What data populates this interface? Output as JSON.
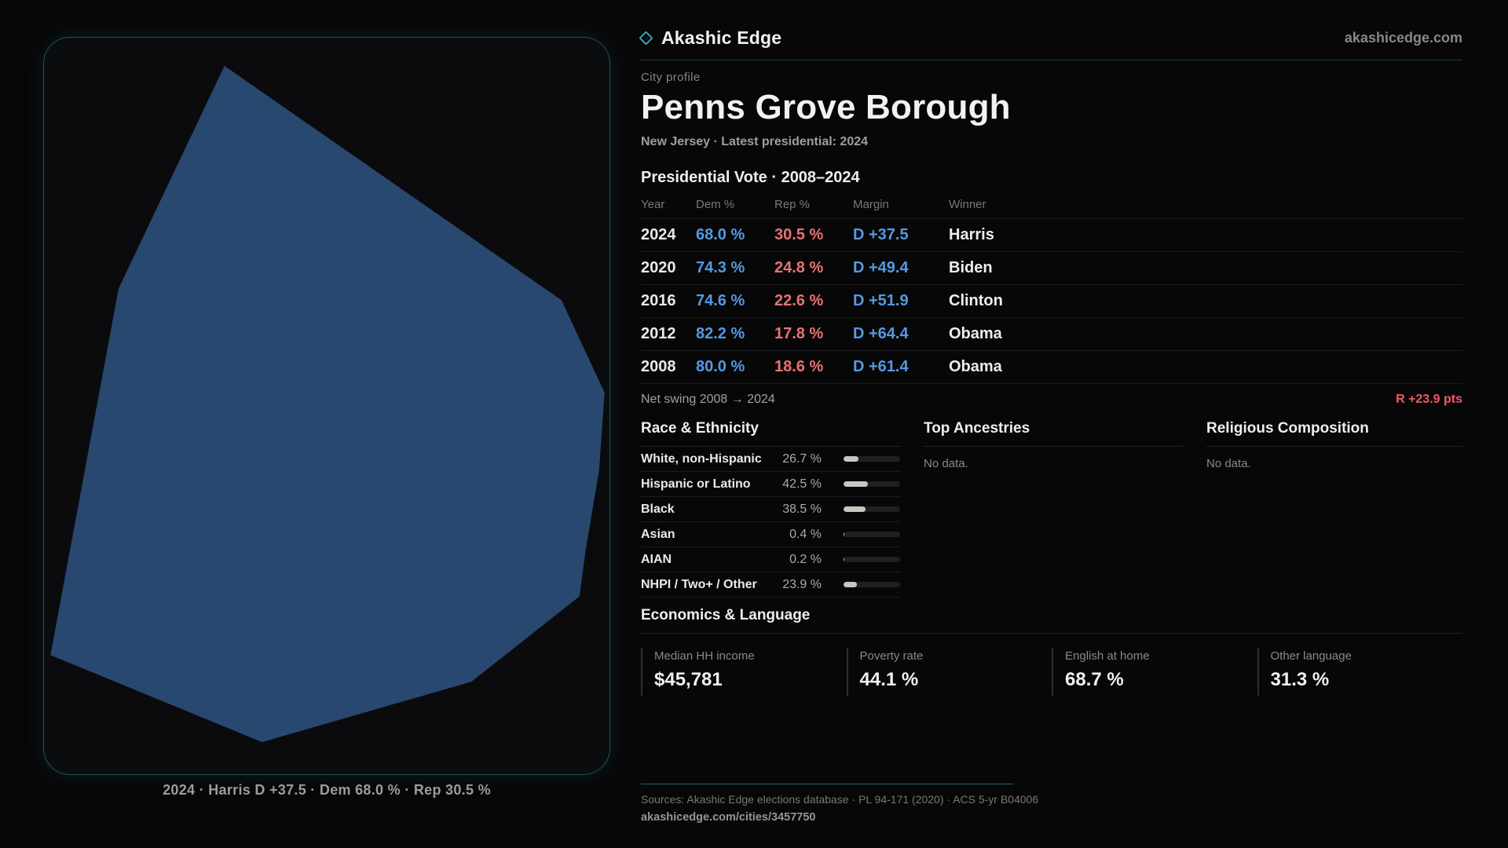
{
  "brand": {
    "name": "Akashic Edge",
    "site": "akashicedge.com"
  },
  "map": {
    "caption": "2024 · Harris D +37.5 · Dem 68.0 % · Rep 30.5 %",
    "shape_fill": "#284870",
    "panel_border": "#17565c"
  },
  "profile": {
    "kicker": "City profile",
    "title": "Penns Grove Borough",
    "subtitle": "New Jersey · Latest presidential: 2024"
  },
  "vote_table": {
    "title": "Presidential Vote · 2008–2024",
    "columns": {
      "year": "Year",
      "dem": "Dem %",
      "rep": "Rep %",
      "margin": "Margin",
      "winner": "Winner"
    },
    "rows": [
      {
        "year": "2024",
        "dem": "68.0 %",
        "rep": "30.5 %",
        "margin": "D +37.5",
        "winner": "Harris"
      },
      {
        "year": "2020",
        "dem": "74.3 %",
        "rep": "24.8 %",
        "margin": "D +49.4",
        "winner": "Biden"
      },
      {
        "year": "2016",
        "dem": "74.6 %",
        "rep": "22.6 %",
        "margin": "D +51.9",
        "winner": "Clinton"
      },
      {
        "year": "2012",
        "dem": "82.2 %",
        "rep": "17.8 %",
        "margin": "D +64.4",
        "winner": "Obama"
      },
      {
        "year": "2008",
        "dem": "80.0 %",
        "rep": "18.6 %",
        "margin": "D +61.4",
        "winner": "Obama"
      }
    ]
  },
  "net_swing": {
    "label": "Net swing 2008 → 2024",
    "value": "R +23.9 pts"
  },
  "race": {
    "title": "Race & Ethnicity",
    "rows": [
      {
        "label": "White, non-Hispanic",
        "value": "26.7 %",
        "pct": 26.7
      },
      {
        "label": "Hispanic or Latino",
        "value": "42.5 %",
        "pct": 42.5
      },
      {
        "label": "Black",
        "value": "38.5 %",
        "pct": 38.5
      },
      {
        "label": "Asian",
        "value": "0.4 %",
        "pct": 0.4
      },
      {
        "label": "AIAN",
        "value": "0.2 %",
        "pct": 0.2
      },
      {
        "label": "NHPI / Two+ / Other",
        "value": "23.9 %",
        "pct": 23.9
      }
    ]
  },
  "ancestries": {
    "title": "Top Ancestries",
    "empty": "No data."
  },
  "religion": {
    "title": "Religious Composition",
    "empty": "No data."
  },
  "economics": {
    "title": "Economics & Language",
    "stats": [
      {
        "label": "Median HH income",
        "value": "$45,781"
      },
      {
        "label": "Poverty rate",
        "value": "44.1 %"
      },
      {
        "label": "English at home",
        "value": "68.7 %"
      },
      {
        "label": "Other language",
        "value": "31.3 %"
      }
    ]
  },
  "footer": {
    "sources": "Sources: Akashic Edge elections database · PL 94-171 (2020) · ACS 5-yr B04006",
    "permalink": "akashicedge.com/cities/3457750"
  },
  "colors": {
    "dem": "#5599e2",
    "rep": "#e87272",
    "accent": "#2fa8b5",
    "swing": "#ef5a62"
  }
}
